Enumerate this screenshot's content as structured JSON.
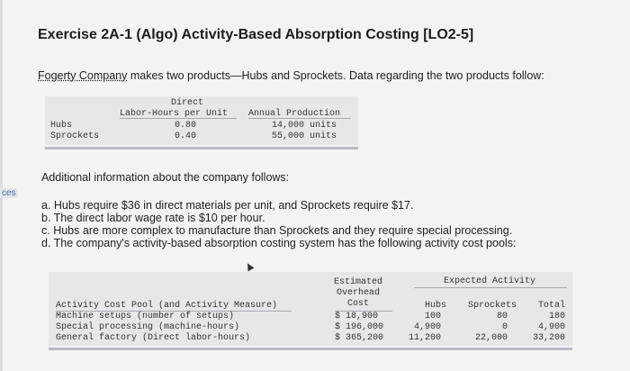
{
  "sidebar_edge_label": "ces",
  "exercise_title": "Exercise 2A-1 (Algo) Activity-Based Absorption Costing [LO2-5]",
  "intro_company": "Fogerty Company",
  "intro_rest": " makes two products—Hubs and Sprockets. Data regarding the two products follow:",
  "product_table": {
    "col1_header_line1": "Direct",
    "col1_header_line2": "Labor-Hours per Unit",
    "col2_header": "Annual Production",
    "rows": [
      {
        "name": "Hubs",
        "dlh": "0.80",
        "production": "14,000 units"
      },
      {
        "name": "Sprockets",
        "dlh": "0.40",
        "production": "55,000 units"
      }
    ]
  },
  "additional_info": "Additional information about the company follows:",
  "items": [
    "a. Hubs require $36 in direct materials per unit, and Sprockets require $17.",
    "b. The direct labor wage rate is $10 per hour.",
    "c. Hubs are more complex to manufacture than Sprockets and they require special processing.",
    "d. The company's activity-based absorption costing system has the following activity cost pools:"
  ],
  "cost_pool_table": {
    "col_pool_header": "Activity Cost Pool (and Activity Measure)",
    "col_cost_header_line1": "Estimated",
    "col_cost_header_line2": "Overhead",
    "col_cost_header_line3": "Cost",
    "group_header": "Expected Activity",
    "col_hubs": "Hubs",
    "col_sprockets": "Sprockets",
    "col_total": "Total",
    "rows": [
      {
        "pool": "Machine setups (number of setups)",
        "cost": "$  18,900",
        "hubs": "100",
        "sprockets": "80",
        "total": "180"
      },
      {
        "pool": "Special processing (machine-hours)",
        "cost": "$ 196,000",
        "hubs": "4,900",
        "sprockets": "0",
        "total": "4,900"
      },
      {
        "pool": "General factory (Direct labor-hours)",
        "cost": "$ 365,200",
        "hubs": "11,200",
        "sprockets": "22,000",
        "total": "33,200"
      }
    ]
  }
}
